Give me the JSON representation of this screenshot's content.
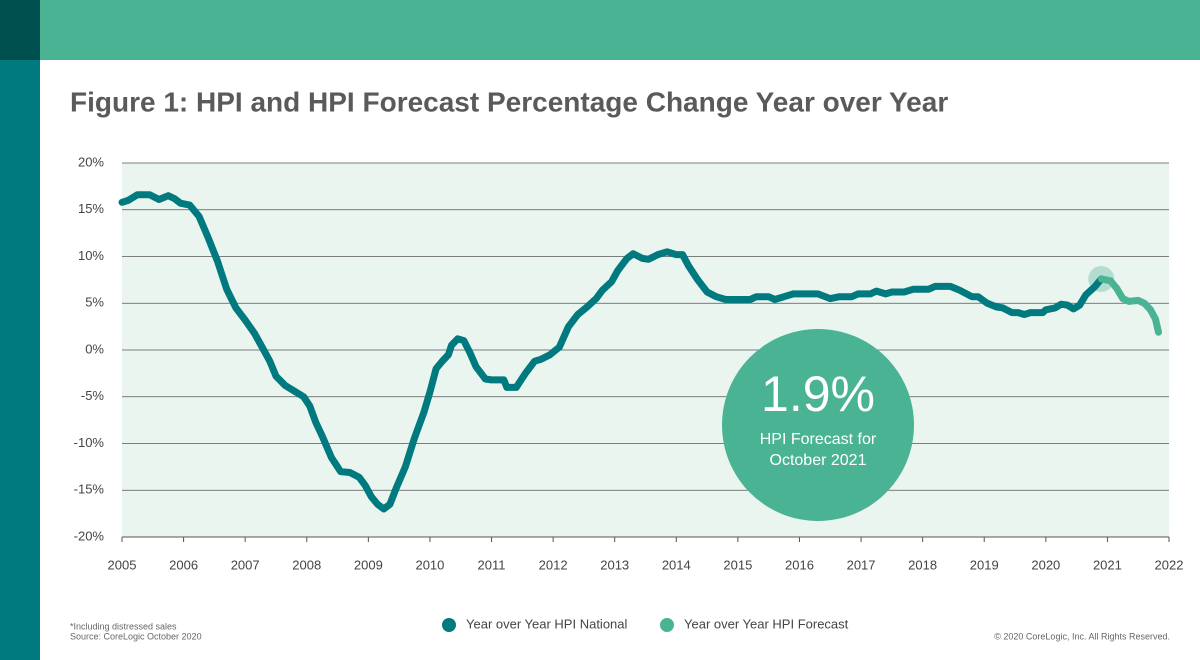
{
  "chart_data": {
    "type": "line",
    "title": "Figure 1: HPI and HPI Forecast Percentage Change Year over Year",
    "footnotes": [
      "*Including distressed sales",
      "Source: CoreLogic October 2020"
    ],
    "copyright": "© 2020 CoreLogic, Inc. All Rights Reserved.",
    "callout": {
      "value": 1.9,
      "value_label": "1.9%",
      "lines": [
        "HPI Forecast for",
        "October 2021"
      ]
    },
    "xlim": [
      2005,
      2022
    ],
    "xticks": [
      2005,
      2006,
      2007,
      2008,
      2009,
      2010,
      2011,
      2012,
      2013,
      2014,
      2015,
      2016,
      2017,
      2018,
      2019,
      2020,
      2021,
      2022
    ],
    "ylim": [
      -20,
      20
    ],
    "yticks": [
      {
        "value": -20,
        "label": "-20%"
      },
      {
        "value": -15,
        "label": "-15%"
      },
      {
        "value": -10,
        "label": "-10%"
      },
      {
        "value": -5,
        "label": "-5%"
      },
      {
        "value": 0,
        "label": "0%"
      },
      {
        "value": 5,
        "label": "5%"
      },
      {
        "value": 10,
        "label": "10%"
      },
      {
        "value": 15,
        "label": "15%"
      },
      {
        "value": 20,
        "label": "20%"
      }
    ],
    "grid": true,
    "legend": "bottom",
    "series": [
      {
        "name": "Year over Year HPI National",
        "color": "#00797f",
        "x": [
          2005.0,
          2005.1,
          2005.25,
          2005.45,
          2005.6,
          2005.75,
          2005.85,
          2005.95,
          2006.1,
          2006.25,
          2006.4,
          2006.55,
          2006.7,
          2006.85,
          2007.0,
          2007.15,
          2007.3,
          2007.4,
          2007.5,
          2007.65,
          2007.8,
          2007.95,
          2008.05,
          2008.15,
          2008.25,
          2008.4,
          2008.55,
          2008.7,
          2008.85,
          2008.95,
          2009.05,
          2009.15,
          2009.25,
          2009.35,
          2009.45,
          2009.6,
          2009.75,
          2009.9,
          2010.0,
          2010.1,
          2010.2,
          2010.3,
          2010.35,
          2010.45,
          2010.55,
          2010.65,
          2010.75,
          2010.9,
          2011.0,
          2011.2,
          2011.25,
          2011.4,
          2011.55,
          2011.7,
          2011.8,
          2011.95,
          2012.1,
          2012.25,
          2012.4,
          2012.55,
          2012.7,
          2012.8,
          2012.95,
          2013.05,
          2013.2,
          2013.3,
          2013.45,
          2013.55,
          2013.7,
          2013.85,
          2014.0,
          2014.1,
          2014.2,
          2014.35,
          2014.5,
          2014.65,
          2014.8,
          2015.0,
          2015.2,
          2015.3,
          2015.5,
          2015.6,
          2015.75,
          2015.9,
          2016.1,
          2016.3,
          2016.5,
          2016.65,
          2016.85,
          2016.95,
          2017.15,
          2017.25,
          2017.4,
          2017.5,
          2017.7,
          2017.85,
          2018.1,
          2018.2,
          2018.45,
          2018.6,
          2018.8,
          2018.9,
          2019.05,
          2019.2,
          2019.3,
          2019.45,
          2019.55,
          2019.65,
          2019.75,
          2019.95,
          2020.0,
          2020.15,
          2020.25,
          2020.35,
          2020.45,
          2020.55,
          2020.65,
          2020.8,
          2020.9
        ],
        "values": [
          15.8,
          16.0,
          16.6,
          16.6,
          16.1,
          16.5,
          16.2,
          15.7,
          15.5,
          14.3,
          12.0,
          9.5,
          6.5,
          4.5,
          3.2,
          1.8,
          0,
          -1.2,
          -2.8,
          -3.8,
          -4.4,
          -5.0,
          -6.0,
          -7.8,
          -9.2,
          -11.5,
          -13.0,
          -13.1,
          -13.6,
          -14.5,
          -15.7,
          -16.5,
          -17.0,
          -16.5,
          -14.8,
          -12.5,
          -9.4,
          -6.7,
          -4.5,
          -2.0,
          -1.2,
          -0.5,
          0.5,
          1.2,
          1.0,
          -0.3,
          -1.8,
          -3.1,
          -3.2,
          -3.2,
          -4.0,
          -4.0,
          -2.5,
          -1.2,
          -1.0,
          -0.5,
          0.3,
          2.5,
          3.8,
          4.6,
          5.5,
          6.4,
          7.3,
          8.5,
          9.8,
          10.3,
          9.8,
          9.7,
          10.2,
          10.5,
          10.2,
          10.2,
          9.0,
          7.5,
          6.2,
          5.7,
          5.4,
          5.4,
          5.4,
          5.7,
          5.7,
          5.4,
          5.7,
          6.0,
          6.0,
          6.0,
          5.5,
          5.7,
          5.7,
          6.0,
          6.0,
          6.3,
          6.0,
          6.2,
          6.2,
          6.5,
          6.5,
          6.8,
          6.8,
          6.4,
          5.7,
          5.7,
          5.0,
          4.6,
          4.5,
          4.0,
          4.0,
          3.8,
          4.0,
          4.0,
          4.3,
          4.5,
          4.9,
          4.8,
          4.4,
          4.8,
          5.9,
          6.8,
          7.6
        ]
      },
      {
        "name": "Year over Year HPI Forecast",
        "color": "#4ab394",
        "x": [
          2020.9,
          2021.05,
          2021.15,
          2021.25,
          2021.35,
          2021.5,
          2021.6,
          2021.7,
          2021.78,
          2021.83
        ],
        "values": [
          7.6,
          7.4,
          6.6,
          5.5,
          5.2,
          5.3,
          5.0,
          4.3,
          3.3,
          1.9
        ]
      }
    ]
  }
}
